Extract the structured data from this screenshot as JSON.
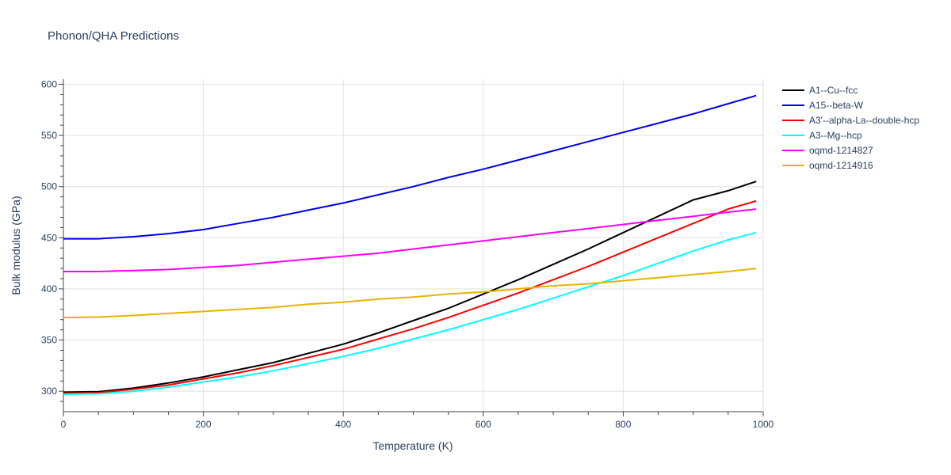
{
  "chart_data": {
    "type": "line",
    "title": "Phonon/QHA Predictions",
    "xlabel": "Temperature (K)",
    "ylabel": "Bulk modulus (GPa)",
    "xlim": [
      0,
      1000
    ],
    "ylim": [
      280,
      605
    ],
    "xticks": [
      0,
      200,
      400,
      600,
      800,
      1000
    ],
    "yticks": [
      300,
      350,
      400,
      450,
      500,
      550,
      600
    ],
    "grid": true,
    "legend_position": "right",
    "series": [
      {
        "name": "A1--Cu--fcc",
        "color": "#000000",
        "x": [
          0,
          50,
          100,
          150,
          200,
          250,
          300,
          350,
          400,
          450,
          500,
          550,
          600,
          650,
          700,
          750,
          800,
          850,
          900,
          950,
          990
        ],
        "y": [
          299,
          299.5,
          303,
          308,
          314,
          321,
          328,
          337,
          346,
          357,
          369,
          381,
          395,
          409,
          424,
          439,
          455,
          471,
          487,
          496,
          505
        ]
      },
      {
        "name": "A15--beta-W",
        "color": "#0000ee",
        "x": [
          0,
          50,
          100,
          150,
          200,
          250,
          300,
          350,
          400,
          450,
          500,
          550,
          600,
          650,
          700,
          750,
          800,
          850,
          900,
          950,
          990
        ],
        "y": [
          449,
          449,
          451,
          454,
          458,
          464,
          470,
          477,
          484,
          492,
          500,
          509,
          517,
          526,
          535,
          544,
          553,
          562,
          571,
          581,
          589
        ]
      },
      {
        "name": "A3'--alpha-La--double-hcp",
        "color": "#ff0000",
        "x": [
          0,
          50,
          100,
          150,
          200,
          250,
          300,
          350,
          400,
          450,
          500,
          550,
          600,
          650,
          700,
          750,
          800,
          850,
          900,
          950,
          990
        ],
        "y": [
          298,
          298.5,
          302,
          306,
          312,
          318,
          325,
          333,
          341,
          351,
          361,
          372,
          384,
          396,
          409,
          422,
          436,
          450,
          464,
          478,
          486
        ]
      },
      {
        "name": "A3--Mg--hcp",
        "color": "#00ffff",
        "x": [
          0,
          50,
          100,
          150,
          200,
          250,
          300,
          350,
          400,
          450,
          500,
          550,
          600,
          650,
          700,
          750,
          800,
          850,
          900,
          950,
          990
        ],
        "y": [
          297,
          297.5,
          300,
          304,
          309,
          314,
          320,
          327,
          334,
          342,
          351,
          360,
          370,
          380,
          391,
          402,
          413,
          425,
          437,
          448,
          455
        ]
      },
      {
        "name": "oqmd-1214827",
        "color": "#ff00ff",
        "x": [
          0,
          50,
          100,
          150,
          200,
          250,
          300,
          350,
          400,
          450,
          500,
          550,
          600,
          650,
          700,
          750,
          800,
          850,
          900,
          950,
          990
        ],
        "y": [
          417,
          417,
          418,
          419,
          421,
          423,
          426,
          429,
          432,
          435,
          439,
          443,
          447,
          451,
          455,
          459,
          463,
          467,
          471,
          475,
          478
        ]
      },
      {
        "name": "oqmd-1214916",
        "color": "#e6b400",
        "x": [
          0,
          50,
          100,
          150,
          200,
          250,
          300,
          350,
          400,
          450,
          500,
          550,
          600,
          650,
          700,
          750,
          800,
          850,
          900,
          950,
          990
        ],
        "y": [
          372,
          372.5,
          374,
          376,
          378,
          380,
          382,
          385,
          387,
          390,
          392,
          395,
          397,
          400,
          403,
          405,
          408,
          411,
          414,
          417,
          420
        ]
      }
    ]
  }
}
